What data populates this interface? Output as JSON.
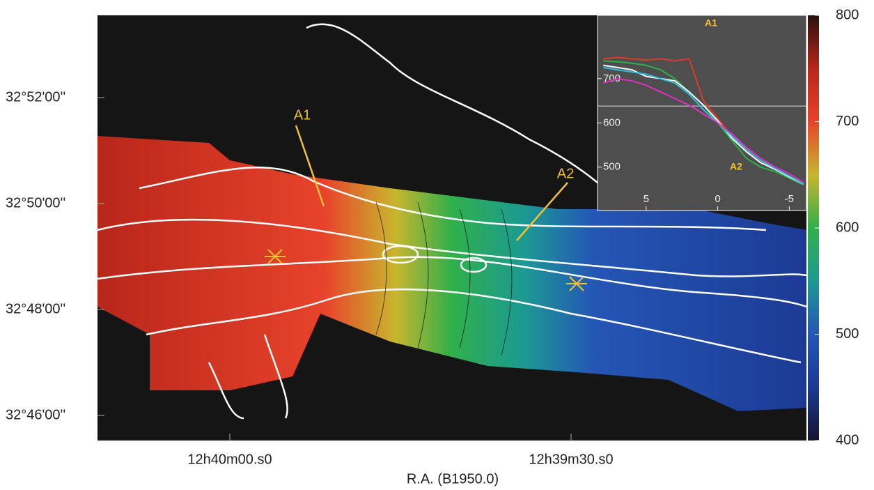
{
  "chart_data": {
    "type": "velocity-map",
    "xlabel": "R.A. (B1950.0)",
    "xticks": [
      "12h40m00.s0",
      "12h39m30.s0"
    ],
    "yticks": [
      "32°52'00''",
      "32°50'00''",
      "32°48'00''",
      "32°46'00''"
    ],
    "annotations": [
      "A1",
      "A2"
    ],
    "colorbar": {
      "lim": [
        400,
        800
      ],
      "ticks": [
        400,
        500,
        600,
        700,
        800
      ],
      "colors": [
        "#141430",
        "#1c3a94",
        "#2456b6",
        "#1c9a92",
        "#2fb04a",
        "#c8b62e",
        "#e8432b",
        "#b8261a",
        "#2a100c"
      ]
    },
    "inset": {
      "type": "line",
      "xlim": [
        8.4,
        -6.2
      ],
      "ylim": [
        402,
        843
      ],
      "xticks": [
        5,
        0,
        -5
      ],
      "yticks": [
        500,
        600,
        700
      ],
      "hline": 638,
      "annotations": [
        "A1",
        "A2"
      ],
      "x": [
        8,
        7,
        6,
        5,
        4,
        3,
        2,
        1,
        0,
        -1,
        -2,
        -3,
        -4,
        -5,
        -6
      ],
      "series": [
        {
          "color": "#e03a2a",
          "values": [
            745,
            748,
            745,
            742,
            745,
            740,
            745,
            650,
            610,
            570,
            540,
            515,
            495,
            480,
            460
          ]
        },
        {
          "color": "#2db04a",
          "values": [
            740,
            738,
            735,
            730,
            720,
            700,
            670,
            640,
            600,
            560,
            520,
            500,
            490,
            475,
            460
          ]
        },
        {
          "color": "#ffffff",
          "values": [
            730,
            725,
            720,
            705,
            700,
            695,
            670,
            640,
            605,
            565,
            535,
            510,
            495,
            478,
            462
          ]
        },
        {
          "color": "#2ec0e0",
          "values": [
            725,
            720,
            715,
            710,
            700,
            690,
            665,
            630,
            600,
            570,
            540,
            515,
            497,
            480,
            462
          ]
        },
        {
          "color": "#e030c0",
          "values": [
            690,
            700,
            695,
            685,
            670,
            655,
            640,
            620,
            600,
            575,
            545,
            520,
            500,
            485,
            465
          ]
        }
      ]
    }
  }
}
